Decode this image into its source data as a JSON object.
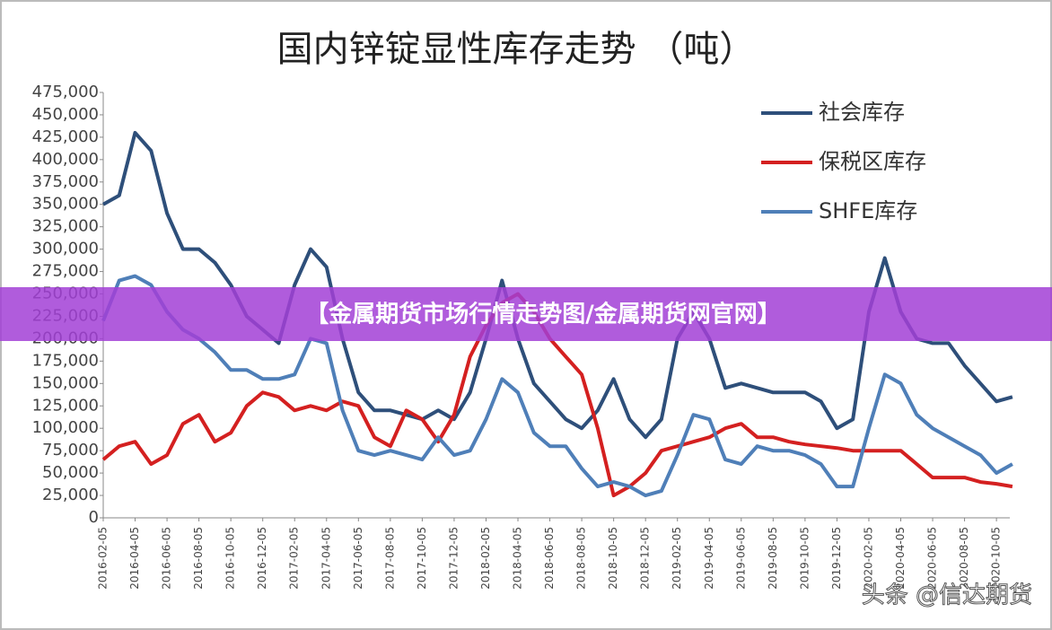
{
  "chart_data": {
    "type": "line",
    "title": "国内锌锭显性库存走势 （吨）",
    "categories": [
      "2016-02-05",
      null,
      "2016-04-05",
      null,
      "2016-06-05",
      null,
      "2016-08-05",
      null,
      "2016-10-05",
      null,
      "2016-12-05",
      null,
      "2017-02-05",
      null,
      "2017-04-05",
      null,
      "2017-06-05",
      null,
      "2017-08-05",
      null,
      "2017-10-05",
      null,
      "2017-12-05",
      null,
      "2018-02-05",
      null,
      "2018-04-05",
      null,
      "2018-06-05",
      null,
      "2018-08-05",
      null,
      "2018-10-05",
      null,
      "2018-12-05",
      null,
      "2019-02-05",
      null,
      "2019-04-05",
      null,
      "2019-06-05",
      null,
      "2019-08-05",
      null,
      "2019-10-05",
      null,
      "2019-12-05",
      null,
      "2020-02-05",
      null,
      "2020-04-05",
      null,
      "2020-06-05",
      null,
      "2020-08-05",
      null,
      "2020-10-05",
      null
    ],
    "series": [
      {
        "name": "社会库存",
        "color": "#2e4f7a",
        "values": [
          350000,
          360000,
          430000,
          410000,
          340000,
          300000,
          300000,
          285000,
          260000,
          225000,
          210000,
          195000,
          260000,
          300000,
          280000,
          200000,
          140000,
          120000,
          120000,
          115000,
          110000,
          120000,
          110000,
          140000,
          200000,
          265000,
          200000,
          150000,
          130000,
          110000,
          100000,
          120000,
          155000,
          110000,
          90000,
          110000,
          200000,
          230000,
          200000,
          145000,
          150000,
          145000,
          140000,
          140000,
          140000,
          130000,
          100000,
          110000,
          230000,
          290000,
          230000,
          200000,
          195000,
          195000,
          170000,
          150000,
          130000,
          135000
        ]
      },
      {
        "name": "保税区库存",
        "color": "#d42020",
        "values": [
          65000,
          80000,
          85000,
          60000,
          70000,
          105000,
          115000,
          85000,
          95000,
          125000,
          140000,
          135000,
          120000,
          125000,
          120000,
          130000,
          125000,
          90000,
          80000,
          120000,
          110000,
          85000,
          115000,
          180000,
          215000,
          240000,
          250000,
          230000,
          200000,
          180000,
          160000,
          100000,
          25000,
          35000,
          50000,
          75000,
          80000,
          85000,
          90000,
          100000,
          105000,
          90000,
          90000,
          85000,
          82000,
          80000,
          78000,
          75000,
          75000,
          75000,
          75000,
          60000,
          45000,
          45000,
          45000,
          40000,
          38000,
          35000
        ]
      },
      {
        "name": "SHFE库存",
        "color": "#4f7fb8",
        "values": [
          220000,
          265000,
          270000,
          260000,
          230000,
          210000,
          200000,
          185000,
          165000,
          165000,
          155000,
          155000,
          160000,
          200000,
          195000,
          120000,
          75000,
          70000,
          75000,
          70000,
          65000,
          90000,
          70000,
          75000,
          110000,
          155000,
          140000,
          95000,
          80000,
          80000,
          55000,
          35000,
          40000,
          35000,
          25000,
          30000,
          70000,
          115000,
          110000,
          65000,
          60000,
          80000,
          75000,
          75000,
          70000,
          60000,
          35000,
          35000,
          100000,
          160000,
          150000,
          115000,
          100000,
          90000,
          80000,
          70000,
          50000,
          60000
        ]
      }
    ],
    "ylim": [
      0,
      475000
    ],
    "yticks": [
      0,
      {
        "value": 25000,
        "label": "25,000"
      },
      {
        "value": 50000,
        "label": "50,000"
      },
      {
        "value": 75000,
        "label": "75,000"
      },
      {
        "value": 100000,
        "label": "100,000"
      },
      {
        "value": 125000,
        "label": "125,000"
      },
      {
        "value": 150000,
        "label": "150,000"
      },
      {
        "value": 175000,
        "label": "175,000"
      },
      {
        "value": 200000,
        "label": "200,000"
      },
      {
        "value": 225000,
        "label": "225,000"
      },
      {
        "value": 250000,
        "label": "250,000"
      },
      {
        "value": 275000,
        "label": "275,000"
      },
      {
        "value": 300000,
        "label": "300,000"
      },
      {
        "value": 325000,
        "label": "325,000"
      },
      {
        "value": 350000,
        "label": "350,000"
      },
      {
        "value": 375000,
        "label": "375,000"
      },
      {
        "value": 400000,
        "label": "400,000"
      },
      {
        "value": 425000,
        "label": "425,000"
      },
      {
        "value": 450000,
        "label": "450,000"
      },
      {
        "value": 475000,
        "label": "475,000"
      }
    ],
    "grid": false,
    "legend": "top-right"
  },
  "banner": "【金属期货市场行情走势图/金属期货网官网】",
  "watermark": "头条 @信达期货"
}
